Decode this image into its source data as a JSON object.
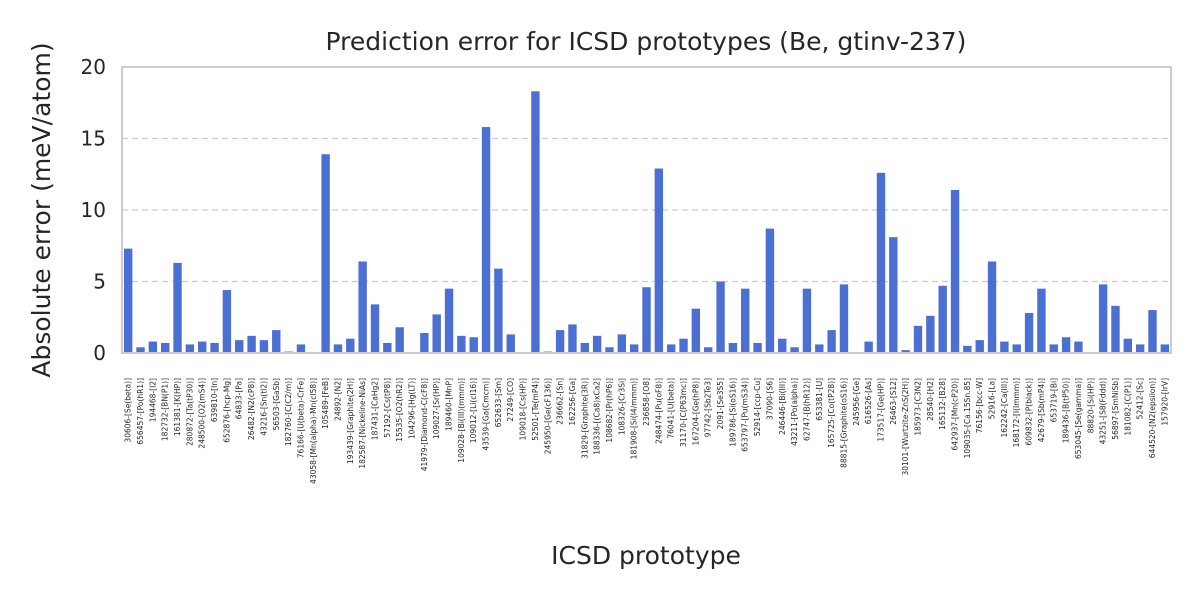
{
  "chart_data": {
    "type": "bar",
    "title": "Prediction error for ICSD prototypes (Be, gtinv-237)",
    "xlabel": "ICSD prototype",
    "ylabel": "Absolute error (meV/atom)",
    "ylim": [
      0,
      20
    ],
    "yticks": [
      0,
      5,
      10,
      15,
      20
    ],
    "grid": "horizontal dashed",
    "color": "#4c6fd4",
    "categories": [
      "30606-[Se(beta)]",
      "656457-[Po(hR1)]",
      "194468-[I2]",
      "182732-[BN(P1)]",
      "161381-[K(HP)]",
      "280872-[Ta(tP30)]",
      "248500-[O2(mS4)]",
      "639810-[In]",
      "652876-[hcp-Mg]",
      "64833-[Pa]",
      "26482-[N2(cP8)]",
      "43216-[Sn(tI2)]",
      "56503-[GaSb]",
      "182760-[C(C2/m)]",
      "76166-[U(beta)-CrFe]",
      "43058-[Mn(alpha)-Mn(cI58)]",
      "105489-[FeB]",
      "24892-[N2]",
      "193439-[Graphite(2H)]",
      "182587-[Nickeline-NiAs]",
      "187431-[CaHg2]",
      "57192-[Cs(tP8)]",
      "15535-[O2(hR2)]",
      "104296-[Hg(LT)]",
      "41979-[Diamond-C(cF8)]",
      "109027-[Sr(HP)]",
      "189460-[MnP]",
      "109028-[Bi(III)(mmm)]",
      "109012-[Li(cI16)]",
      "43539-[Ga(Cmcm)]",
      "652633-[Sm]",
      "27249-[CO]",
      "109018-[Cs(HP)]",
      "52501-[Te(mP4)]",
      "245950-[Ge(cF136)]",
      "236662-[Sn]",
      "162256-[Ga]",
      "31829-[Graphite(3R)]",
      "188336-[(Ca8)xCa2]",
      "108682-[Pr(hP6)]",
      "108326-[Cr3Si]",
      "181908-[Si(I4/mmm)]",
      "236858-[O8]",
      "248474-[Pu(oF8)]",
      "76041-[U(beta)]",
      "31170-[C(P63mc)]",
      "167204-[Ge(hP8)]",
      "97742-[Sb2Te3]",
      "2091-[Se3S5]",
      "189786-[Si(oS16)]",
      "653797-[Pu(mS34)]",
      "52914-[ccp-Cu]",
      "37090-[S6]",
      "246446-[Bi(III)]",
      "43211-[Po(alpha)]",
      "62747-[B(hR12)]",
      "653381-[U]",
      "165725-[Co(tP28)]",
      "88815-[Graphite(oS16)]",
      "245956-[Ge]",
      "616526-[As]",
      "173517-[Ge(HP)]",
      "26463-[S12]",
      "30101-[Wurtzite-ZnS(2H)]",
      "185973-[C3N2]",
      "28540-[H2]",
      "165132-[B28]",
      "642937-[Mn(cP20)]",
      "109035-[Ca.15Sn.85]",
      "76156-[bcc-W]",
      "52916-[La]",
      "162242-[Ca(III)]",
      "168172-[I(Immm)]",
      "609832-[P(black)]",
      "42679-[Sb(mP4)]",
      "653719-[Bi]",
      "189436-[B(tP50)]",
      "653045-[Se(gamma)]",
      "88820-[Si(HP)]",
      "43251-[S8(Fddd)]",
      "56897-[SmNiSb]",
      "181082-[C(P1)]",
      "52412-[Sc]",
      "644520-[N2(epsilon)]",
      "157920-[IrV]"
    ],
    "values": [
      7.3,
      0.4,
      0.8,
      0.7,
      6.3,
      0.6,
      0.8,
      0.7,
      4.4,
      0.9,
      1.2,
      0.9,
      1.6,
      0.1,
      0.6,
      0.0,
      13.9,
      0.6,
      1.0,
      6.4,
      3.4,
      0.7,
      1.8,
      0.0,
      1.4,
      2.7,
      4.5,
      1.2,
      1.1,
      15.8,
      5.9,
      1.3,
      0.0,
      18.3,
      0.1,
      1.6,
      2.0,
      0.7,
      1.2,
      0.4,
      1.3,
      0.6,
      4.6,
      12.9,
      0.6,
      1.0,
      3.1,
      0.4,
      5.0,
      0.7,
      4.5,
      0.7,
      8.7,
      1.0,
      0.4,
      4.5,
      0.6,
      1.6,
      4.8,
      0.0,
      0.8,
      12.6,
      8.1,
      0.2,
      1.9,
      2.6,
      4.7,
      11.4,
      0.5,
      0.9,
      6.4,
      0.8,
      0.6,
      2.8,
      4.5,
      0.6,
      1.1,
      0.8,
      0.0,
      4.8,
      3.3,
      1.0,
      0.6,
      3.0,
      0.6
    ]
  }
}
